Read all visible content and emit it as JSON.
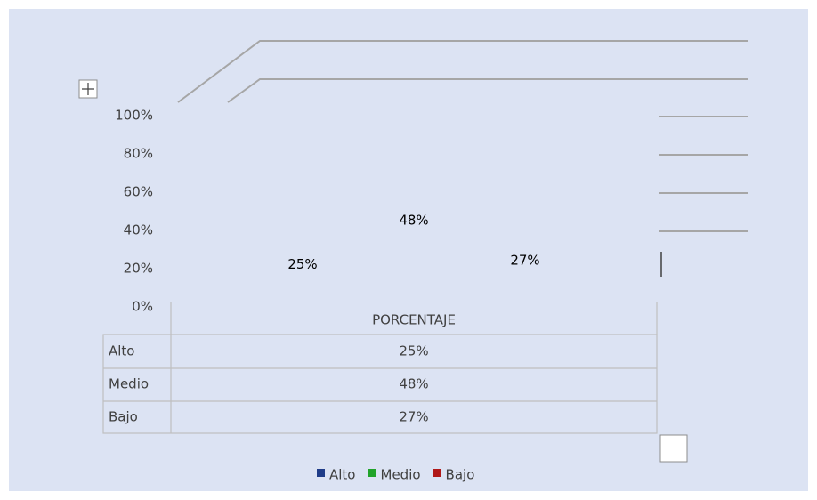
{
  "chart_data": {
    "type": "bar",
    "categories": [
      "PORCENTAJE"
    ],
    "series": [
      {
        "name": "Alto",
        "color": "#1f3c88",
        "values": [
          25
        ],
        "value_labels": [
          "25%"
        ]
      },
      {
        "name": "Medio",
        "color": "#21a32a",
        "values": [
          48
        ],
        "value_labels": [
          "48%"
        ]
      },
      {
        "name": "Bajo",
        "color": "#b01818",
        "values": [
          27
        ],
        "value_labels": [
          "27%"
        ]
      }
    ],
    "ylim": [
      0,
      100
    ],
    "yticks": [
      {
        "value": 0,
        "label": "0%"
      },
      {
        "value": 20,
        "label": "20%"
      },
      {
        "value": 40,
        "label": "40%"
      },
      {
        "value": 60,
        "label": "60%"
      },
      {
        "value": 80,
        "label": "80%"
      },
      {
        "value": 100,
        "label": "100%"
      }
    ]
  }
}
